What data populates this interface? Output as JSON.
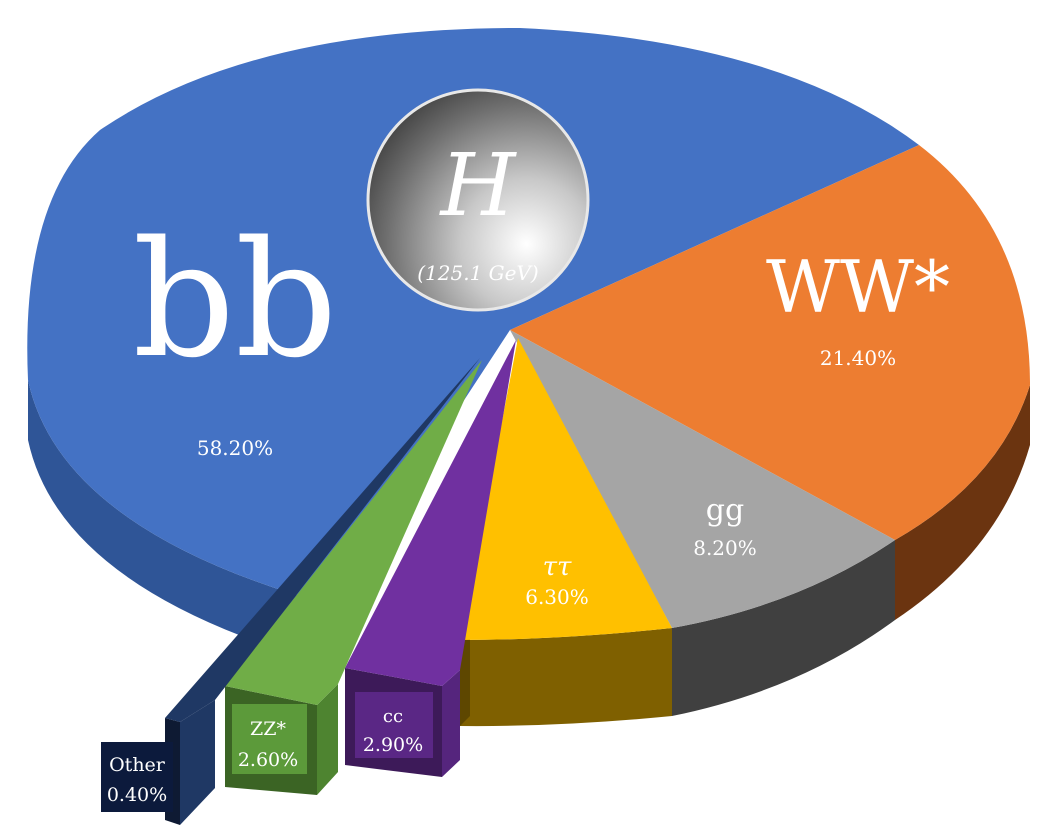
{
  "chart_data": {
    "type": "pie",
    "title": "",
    "center_badge": {
      "symbol": "H",
      "mass": "(125.1 GeV)"
    },
    "slices": [
      {
        "key": "bb",
        "label": "bb",
        "value_text": "58.20%",
        "value": 58.2,
        "color": "#4472C4",
        "side": "#2F5597"
      },
      {
        "key": "ww",
        "label": "WW*",
        "value_text": "21.40%",
        "value": 21.4,
        "color": "#ED7D31",
        "side": "#843C0C"
      },
      {
        "key": "gg",
        "label": "gg",
        "value_text": "8.20%",
        "value": 8.2,
        "color": "#A5A5A5",
        "side": "#404040"
      },
      {
        "key": "tautau",
        "label": "ττ",
        "value_text": "6.30%",
        "value": 6.3,
        "color": "#FFC000",
        "side": "#7F6000"
      },
      {
        "key": "cc",
        "label": "cc",
        "value_text": "2.90%",
        "value": 2.9,
        "color": "#7030A0",
        "side": "#3D1A59"
      },
      {
        "key": "zz",
        "label": "ZZ*",
        "value_text": "2.60%",
        "value": 2.6,
        "color": "#70AD47",
        "side": "#3B6424"
      },
      {
        "key": "other",
        "label": "Other",
        "value_text": "0.40%",
        "value": 0.4,
        "color": "#1F3864",
        "side": "#0E1A33"
      }
    ]
  }
}
